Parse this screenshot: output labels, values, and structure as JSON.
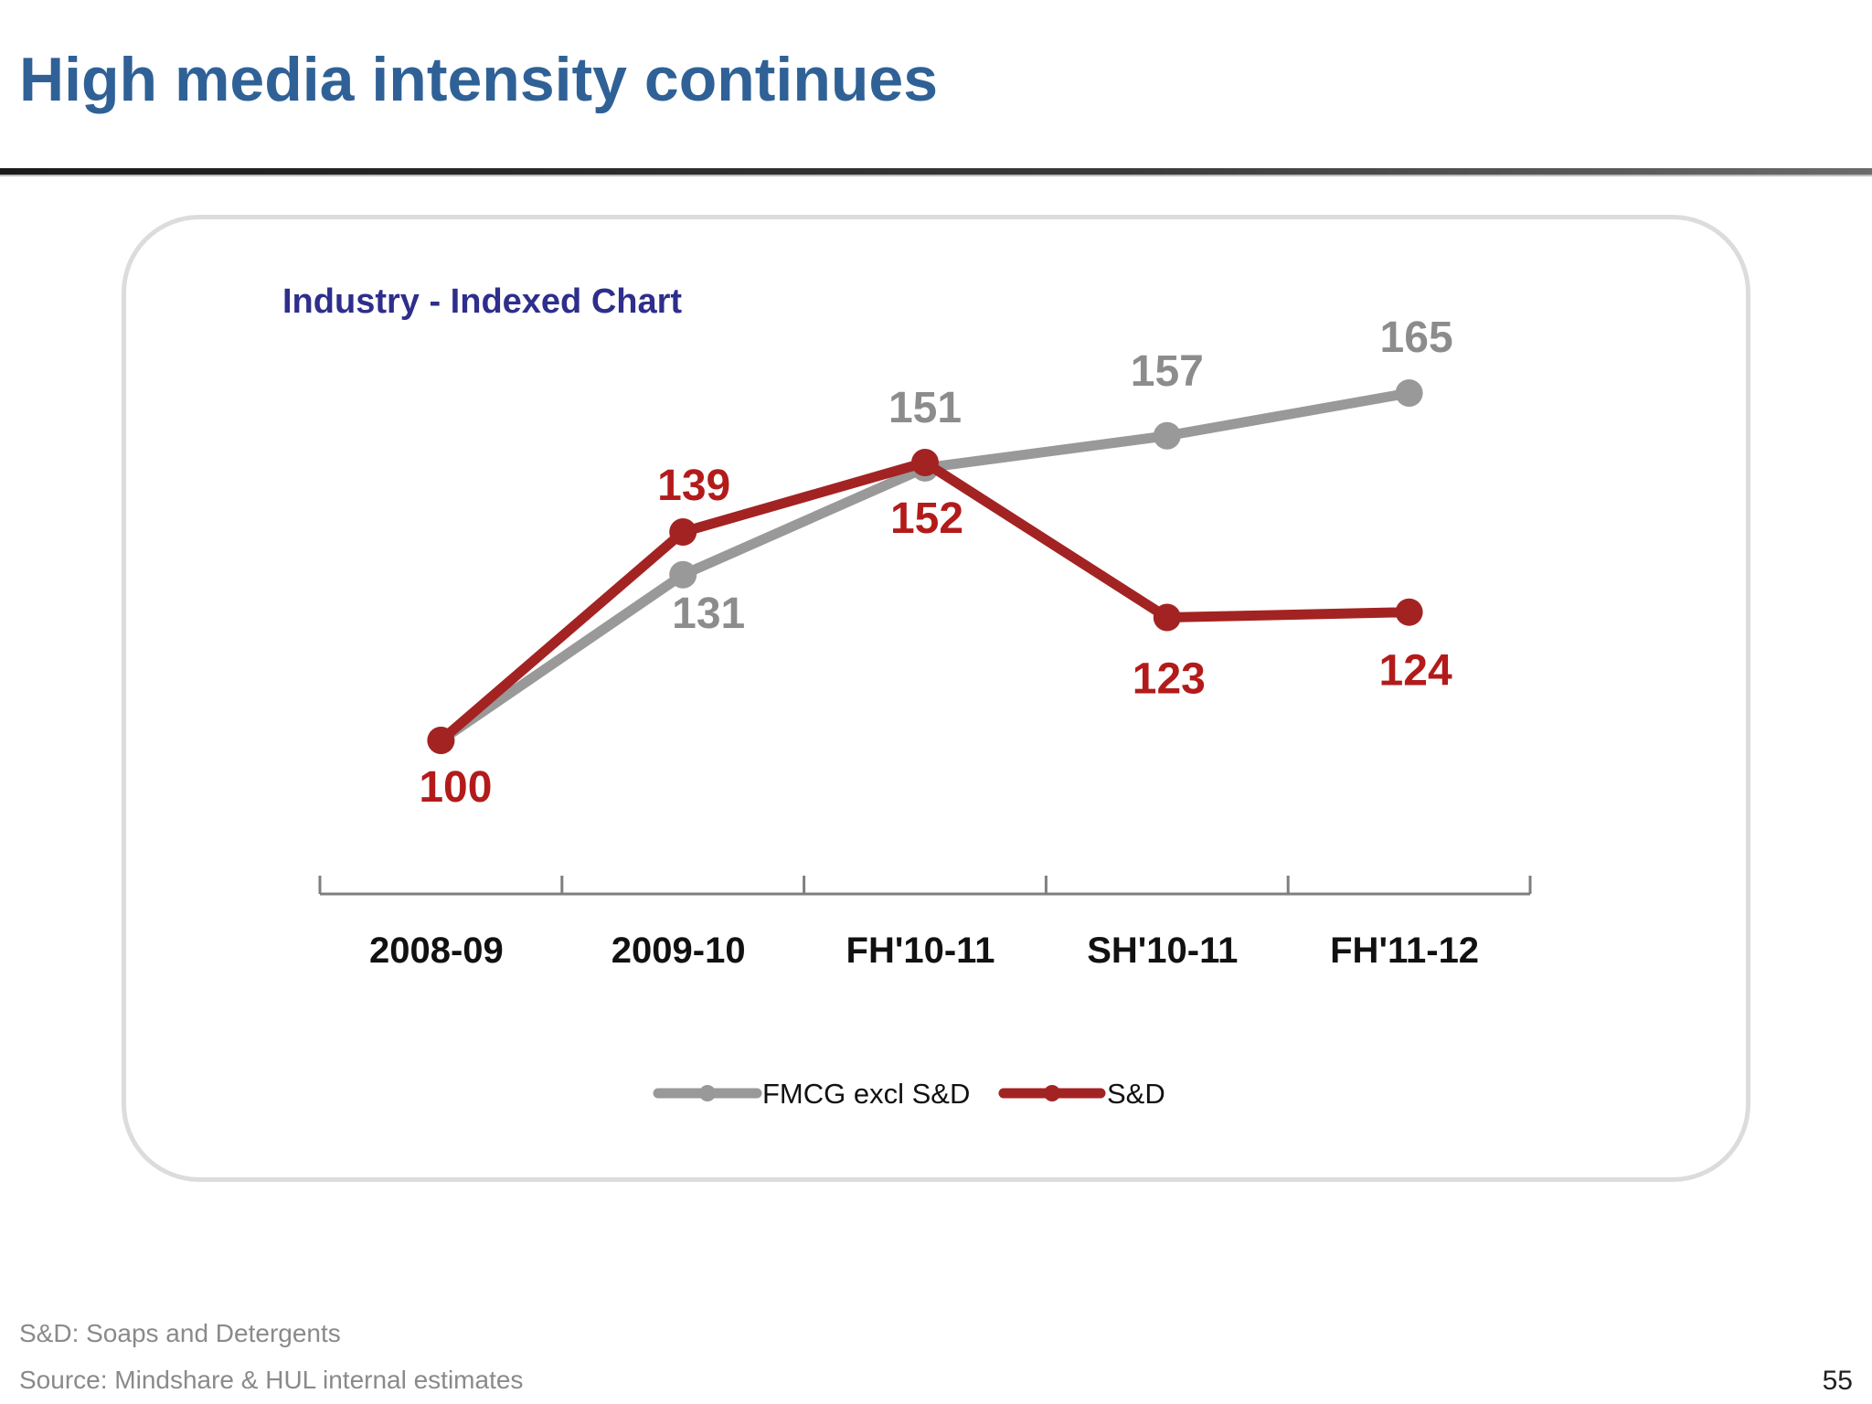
{
  "slide": {
    "title": "High media intensity continues",
    "footnote": "S&D: Soaps and Detergents",
    "source": "Source: Mindshare & HUL internal estimates",
    "page_number": "55"
  },
  "chart_data": {
    "type": "line",
    "title": "Industry - Indexed Chart",
    "xlabel": "",
    "ylabel": "",
    "ylim": [
      90,
      170
    ],
    "grid": false,
    "legend_position": "bottom-center",
    "categories": [
      "2008-09",
      "2009-10",
      "FH'10-11",
      "SH'10-11",
      "FH'11-12"
    ],
    "series": [
      {
        "name": "FMCG excl S&D",
        "values": [
          100,
          131,
          151,
          157,
          165
        ],
        "labels": [
          "",
          "131",
          "151",
          "157",
          "165"
        ],
        "color": "#999999"
      },
      {
        "name": "S&D",
        "values": [
          100,
          139,
          152,
          123,
          124
        ],
        "labels": [
          "100",
          "139",
          "152",
          "123",
          "124"
        ],
        "color": "#a32323"
      }
    ]
  },
  "colors": {
    "title": "#2f6196",
    "chart_title": "#2e2e8c",
    "axis": "#7f7f7f",
    "fmcg_label": "#8c8c8c",
    "sd_label": "#b31b1b"
  }
}
